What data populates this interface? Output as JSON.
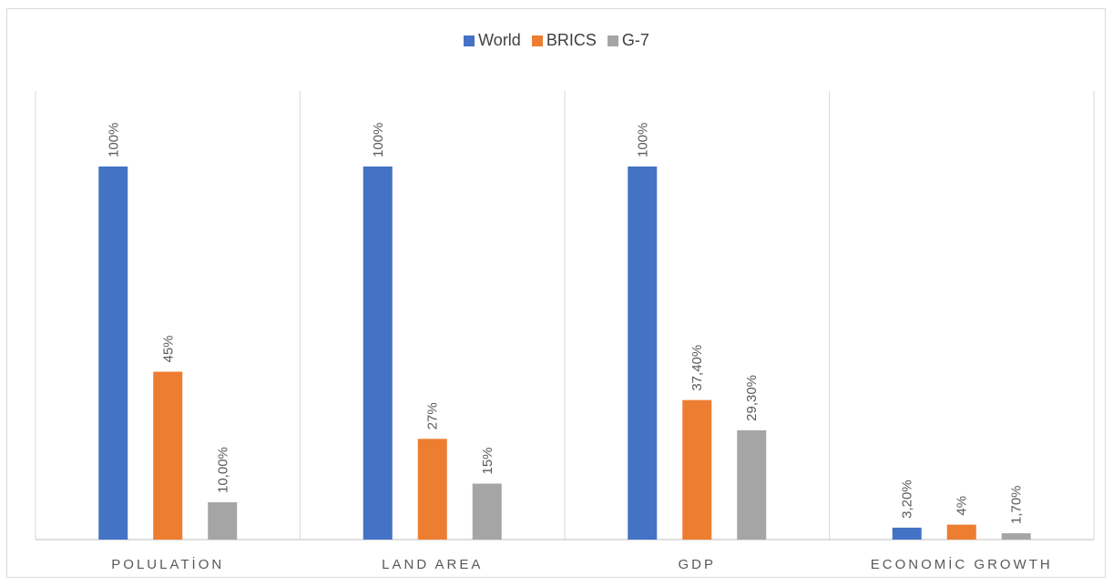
{
  "chart_data": {
    "type": "bar",
    "categories": [
      "POLULATİON",
      "LAND AREA",
      "GDP",
      "ECONOMİC GROWTH"
    ],
    "series": [
      {
        "name": "World",
        "color": "#4472C4",
        "values": [
          100,
          100,
          100,
          3.2
        ],
        "labels": [
          "100%",
          "100%",
          "100%",
          "3,20%"
        ]
      },
      {
        "name": "BRICS",
        "color": "#ED7D31",
        "values": [
          45,
          27,
          37.4,
          4
        ],
        "labels": [
          "45%",
          "27%",
          "37,40%",
          "4%"
        ]
      },
      {
        "name": "G-7",
        "color": "#A5A5A5",
        "values": [
          10,
          15,
          29.3,
          1.7
        ],
        "labels": [
          "10,00%",
          "15%",
          "29,30%",
          "1,70%"
        ]
      }
    ],
    "ylim": [
      0,
      100
    ],
    "legend_position": "top",
    "grid": false
  }
}
